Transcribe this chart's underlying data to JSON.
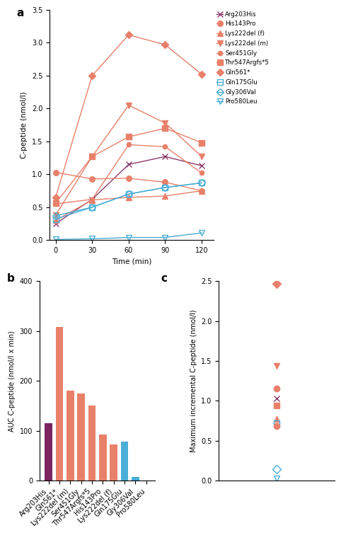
{
  "time_points": [
    0,
    30,
    60,
    90,
    120
  ],
  "lines": {
    "Arg203His": {
      "values": [
        0.25,
        0.62,
        1.15,
        1.27,
        1.13
      ],
      "color": "#8B3A6B",
      "marker": "x",
      "filled": true,
      "markersize": 5.5
    },
    "His143Pro": {
      "values": [
        1.03,
        0.93,
        0.94,
        0.88,
        0.75
      ],
      "color": "#E8806A",
      "marker": "o",
      "filled": true,
      "markersize": 5.5
    },
    "Lys222del (f)": {
      "values": [
        0.3,
        0.61,
        0.65,
        0.67,
        0.75
      ],
      "color": "#E8806A",
      "marker": "^",
      "filled": true,
      "markersize": 5.5
    },
    "Lys222del (m)": {
      "values": [
        0.38,
        1.27,
        2.05,
        1.78,
        1.27
      ],
      "color": "#E8806A",
      "marker": "v",
      "filled": true,
      "markersize": 5.5
    },
    "Ser451Gly": {
      "values": [
        0.55,
        0.62,
        1.45,
        1.42,
        1.02
      ],
      "color": "#E8806A",
      "marker": "o",
      "filled": true,
      "markersize": 4.5
    },
    "Thr547Argfs*5": {
      "values": [
        0.56,
        1.27,
        1.57,
        1.7,
        1.48
      ],
      "color": "#E8806A",
      "marker": "s",
      "filled": true,
      "markersize": 5.5
    },
    "Gln561*": {
      "values": [
        0.65,
        2.5,
        3.12,
        2.97,
        2.52
      ],
      "color": "#E8806A",
      "marker": "D",
      "filled": true,
      "markersize": 5.5
    },
    "Gln175Glu": {
      "values": [
        0.32,
        0.5,
        0.7,
        0.8,
        0.87
      ],
      "color": "#4BAED6",
      "marker": "s",
      "filled": false,
      "markersize": 5.5
    },
    "Gly306Val": {
      "values": [
        0.37,
        0.5,
        0.7,
        0.8,
        0.87
      ],
      "color": "#4BAED6",
      "marker": "D",
      "filled": false,
      "markersize": 5.5
    },
    "Pro580Leu": {
      "values": [
        0.01,
        0.02,
        0.04,
        0.04,
        0.11
      ],
      "color": "#4BAED6",
      "marker": "v",
      "filled": false,
      "markersize": 5.5
    }
  },
  "line_order": [
    "Arg203His",
    "His143Pro",
    "Lys222del (f)",
    "Lys222del (m)",
    "Ser451Gly",
    "Thr547Argfs*5",
    "Gln561*",
    "Gln175Glu",
    "Gly306Val",
    "Pro580Leu"
  ],
  "bar_data": {
    "categories": [
      "Arg203His",
      "Gln561*",
      "Lys222del (m)",
      "Ser451Gly",
      "Thr547Argfs*5",
      "His143Pro",
      "Lys222del (f)",
      "Gln175Glu",
      "Gly306Val",
      "Pro580Leu"
    ],
    "values": [
      115,
      308,
      180,
      174,
      150,
      92,
      72,
      78,
      7,
      0
    ],
    "colors": [
      "#7B2560",
      "#E8806A",
      "#E8806A",
      "#E8806A",
      "#E8806A",
      "#E8806A",
      "#E8806A",
      "#4BAED6",
      "#4BAED6",
      "#4BAED6"
    ]
  },
  "scatter_order": [
    "Gln561*",
    "Lys222del (m)",
    "Ser451Gly",
    "Arg203His",
    "Thr547Argfs*5",
    "Lys222del (f)",
    "Gln175Glu",
    "His143Pro",
    "Gly306Val",
    "Pro580Leu"
  ],
  "scatter_data": {
    "Gln561*": {
      "value": 2.47,
      "color": "#E8806A",
      "marker": "D",
      "filled": true
    },
    "Lys222del (m)": {
      "value": 1.44,
      "color": "#E8806A",
      "marker": "v",
      "filled": true
    },
    "Ser451Gly": {
      "value": 1.15,
      "color": "#E8806A",
      "marker": "o",
      "filled": true
    },
    "Arg203His": {
      "value": 1.03,
      "color": "#8B3A6B",
      "marker": "x",
      "filled": true
    },
    "Thr547Argfs*5": {
      "value": 0.94,
      "color": "#E8806A",
      "marker": "s",
      "filled": true
    },
    "Lys222del (f)": {
      "value": 0.77,
      "color": "#E8806A",
      "marker": "^",
      "filled": true
    },
    "Gln175Glu": {
      "value": 0.72,
      "color": "#4BAED6",
      "marker": "s",
      "filled": false
    },
    "His143Pro": {
      "value": 0.68,
      "color": "#E8806A",
      "marker": "o",
      "filled": true
    },
    "Gly306Val": {
      "value": 0.14,
      "color": "#4BAED6",
      "marker": "D",
      "filled": false
    },
    "Pro580Leu": {
      "value": 0.03,
      "color": "#4BAED6",
      "marker": "v",
      "filled": false
    }
  },
  "ylabel_a": "C-peptide (nmol/l)",
  "xlabel_a": "Time (min)",
  "ylabel_b": "AUC C-peptide (nmol/l x min)",
  "ylabel_c": "Maximum incremental C-peptide (nmol/l)",
  "ylim_a": [
    0,
    3.5
  ],
  "yticks_a": [
    0.0,
    0.5,
    1.0,
    1.5,
    2.0,
    2.5,
    3.0,
    3.5
  ],
  "ylim_b": [
    0,
    400
  ],
  "yticks_b": [
    0,
    100,
    200,
    300,
    400
  ],
  "ylim_c": [
    0,
    2.5
  ],
  "yticks_c": [
    0.0,
    0.5,
    1.0,
    1.5,
    2.0,
    2.5
  ]
}
